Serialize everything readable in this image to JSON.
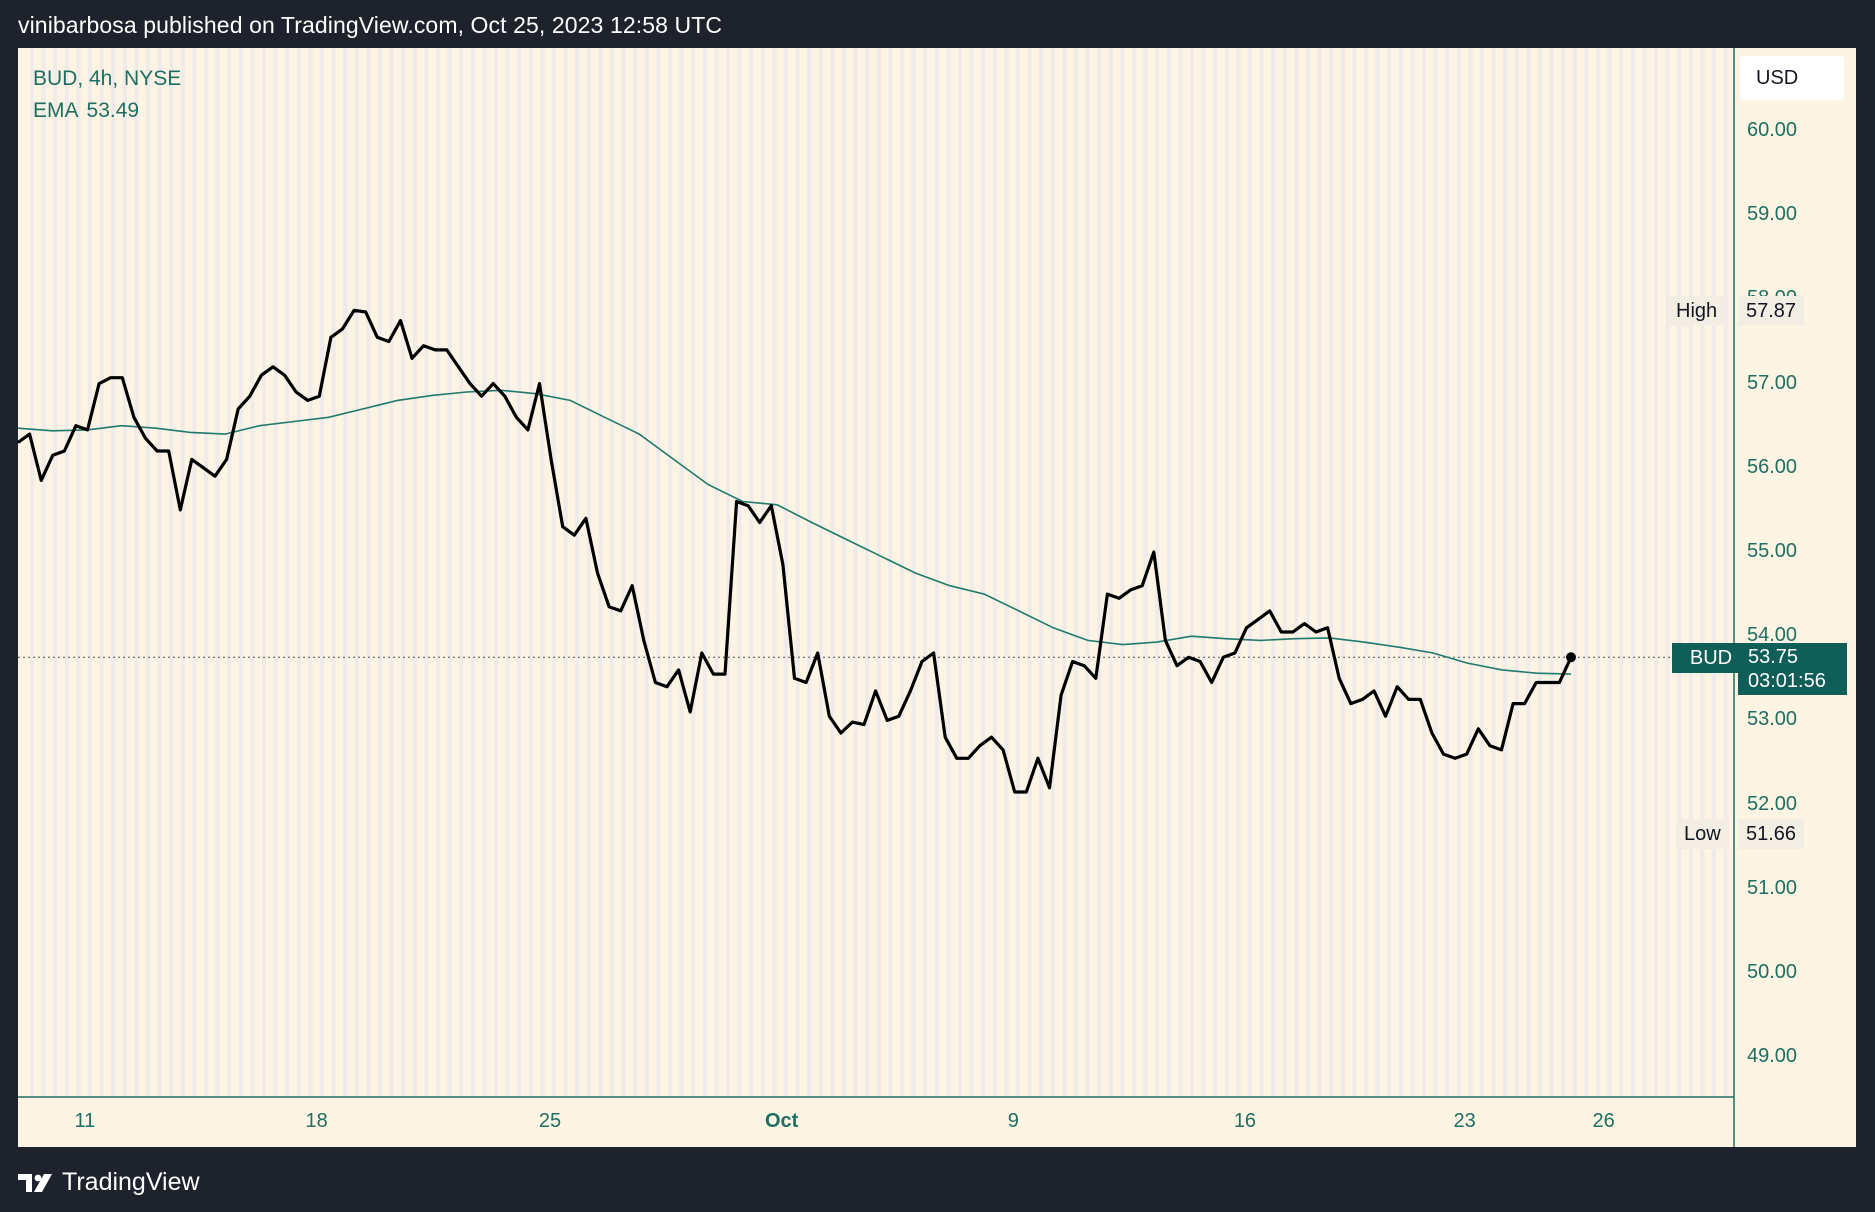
{
  "header": {
    "text": "vinibarbosa published on TradingView.com, Oct 25, 2023 12:58 UTC"
  },
  "legend": {
    "symbol": "BUD, 4h, NYSE",
    "ema_label": "EMA",
    "ema_value": "53.49"
  },
  "currency_button": "USD",
  "high": {
    "label": "High",
    "value": "57.87"
  },
  "low": {
    "label": "Low",
    "value": "51.66"
  },
  "current": {
    "label": "BUD",
    "value": "53.75",
    "countdown": "03:01:56"
  },
  "footer": {
    "brand": "TradingView"
  },
  "colors": {
    "background": "#fdf4e4",
    "session_stripe": "#f0ebea",
    "accent": "#1e6e62",
    "price_line": "#000000",
    "ema_line": "#1e7a6a",
    "badge": "#0f5e58"
  },
  "chart_data": {
    "type": "line",
    "title": "BUD, 4h, NYSE",
    "ylim": [
      48.5,
      60.5
    ],
    "y_ticks": [
      "60.00",
      "59.00",
      "58.00",
      "57.00",
      "56.00",
      "55.00",
      "54.00",
      "53.00",
      "52.00",
      "51.00",
      "50.00",
      "49.00"
    ],
    "x_ticks": [
      {
        "label": "11",
        "pos": 0.039
      },
      {
        "label": "18",
        "pos": 0.174
      },
      {
        "label": "25",
        "pos": 0.31
      },
      {
        "label": "Oct",
        "pos": 0.445,
        "bold": true
      },
      {
        "label": "9",
        "pos": 0.58
      },
      {
        "label": "16",
        "pos": 0.715
      },
      {
        "label": "23",
        "pos": 0.843
      },
      {
        "label": "26",
        "pos": 0.924
      }
    ],
    "series": [
      {
        "name": "BUD",
        "values": [
          56.3,
          56.4,
          55.85,
          56.15,
          56.2,
          56.5,
          56.45,
          57.0,
          57.07,
          57.07,
          56.6,
          56.35,
          56.2,
          56.2,
          55.5,
          56.1,
          56.0,
          55.9,
          56.1,
          56.7,
          56.85,
          57.1,
          57.2,
          57.1,
          56.9,
          56.8,
          56.85,
          57.55,
          57.65,
          57.87,
          57.85,
          57.55,
          57.5,
          57.75,
          57.3,
          57.45,
          57.4,
          57.4,
          57.2,
          57.0,
          56.85,
          57.0,
          56.85,
          56.6,
          56.45,
          57.0,
          56.1,
          55.3,
          55.2,
          55.4,
          54.75,
          54.35,
          54.3,
          54.6,
          53.95,
          53.45,
          53.4,
          53.6,
          53.1,
          53.8,
          53.55,
          53.55,
          55.6,
          55.55,
          55.35,
          55.55,
          54.85,
          53.5,
          53.45,
          53.8,
          53.05,
          52.85,
          52.98,
          52.95,
          53.35,
          53.0,
          53.05,
          53.35,
          53.7,
          53.8,
          52.8,
          52.55,
          52.55,
          52.7,
          52.8,
          52.65,
          52.15,
          52.15,
          52.55,
          52.2,
          53.3,
          53.7,
          53.65,
          53.5,
          54.5,
          54.45,
          54.55,
          54.6,
          55.0,
          53.95,
          53.65,
          53.75,
          53.7,
          53.45,
          53.75,
          53.8,
          54.1,
          54.2,
          54.3,
          54.05,
          54.05,
          54.15,
          54.05,
          54.1,
          53.5,
          53.2,
          53.25,
          53.35,
          53.05,
          53.4,
          53.25,
          53.25,
          52.85,
          52.6,
          52.55,
          52.6,
          52.9,
          52.7,
          52.65,
          53.2,
          53.2,
          53.45,
          53.45,
          53.45,
          53.75
        ]
      },
      {
        "name": "EMA",
        "values": [
          56.47,
          56.44,
          56.45,
          56.5,
          56.47,
          56.42,
          56.4,
          56.5,
          56.55,
          56.6,
          56.7,
          56.8,
          56.86,
          56.9,
          56.92,
          56.88,
          56.8,
          56.6,
          56.4,
          56.1,
          55.8,
          55.6,
          55.56,
          55.35,
          55.15,
          54.95,
          54.75,
          54.6,
          54.5,
          54.3,
          54.1,
          53.95,
          53.9,
          53.93,
          54.0,
          53.97,
          53.95,
          53.97,
          53.98,
          53.93,
          53.87,
          53.8,
          53.68,
          53.6,
          53.56,
          53.55
        ]
      }
    ]
  }
}
